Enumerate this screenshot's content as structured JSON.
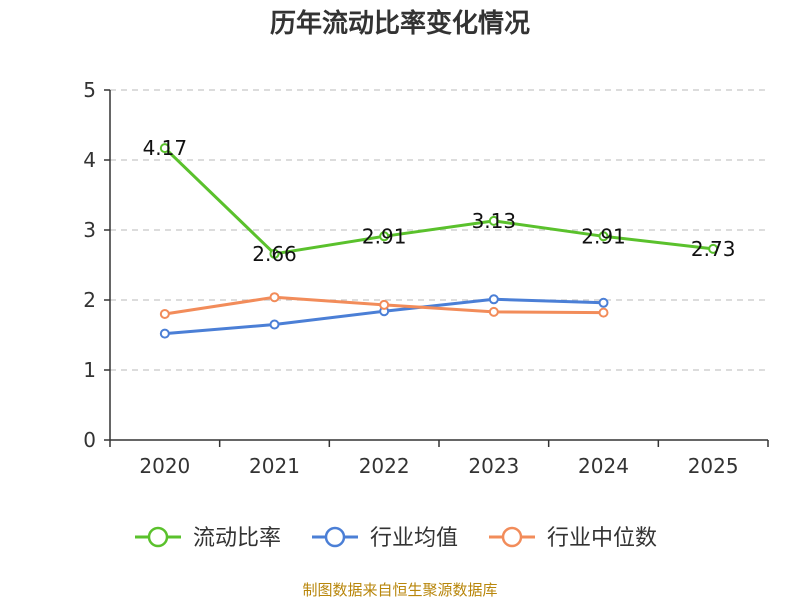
{
  "chart_data": {
    "type": "line",
    "title": "历年流动比率变化情况",
    "categories": [
      "2020",
      "2021",
      "2022",
      "2023",
      "2024",
      "2025"
    ],
    "ylim": [
      0,
      5
    ],
    "yticks": [
      "0",
      "1",
      "2",
      "3",
      "4",
      "5"
    ],
    "grid": true,
    "legend_position": "bottom",
    "series": [
      {
        "name": "流动比率",
        "color": "#5ac12c",
        "values": [
          4.17,
          2.66,
          2.91,
          3.13,
          2.91,
          2.73
        ],
        "labels": [
          "4.17",
          "2.66",
          "2.91",
          "3.13",
          "2.91",
          "2.73"
        ],
        "show_labels": true
      },
      {
        "name": "行业均值",
        "color": "#4b7fd6",
        "values": [
          1.52,
          1.65,
          1.84,
          2.01,
          1.96,
          null
        ],
        "show_labels": false
      },
      {
        "name": "行业中位数",
        "color": "#f28c5a",
        "values": [
          1.8,
          2.04,
          1.93,
          1.83,
          1.82,
          null
        ],
        "show_labels": false
      }
    ]
  },
  "source_text": "制图数据来自恒生聚源数据库"
}
